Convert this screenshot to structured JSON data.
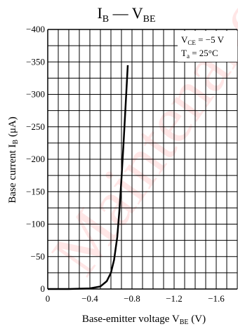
{
  "chart_data": {
    "type": "line",
    "title": {
      "main": "I",
      "main_sub": "B",
      "sep": " — ",
      "second": "V",
      "second_sub": "BE"
    },
    "ylabel": {
      "text": "Base current  I",
      "sub": "B",
      "unit": "  (μA)"
    },
    "xlabel": {
      "text": "Base-emitter voltage  V",
      "sub": "BE",
      "unit": "  (V)"
    },
    "x_ticks": [
      "0",
      "−0.4",
      "−0.8",
      "−1.2",
      "−1.6"
    ],
    "x_tick_values": [
      0,
      -0.4,
      -0.8,
      -1.2,
      -1.6
    ],
    "y_ticks": [
      "0",
      "−50",
      "−100",
      "−150",
      "−200",
      "−250",
      "−300",
      "−350",
      "−400"
    ],
    "y_tick_values": [
      0,
      -50,
      -100,
      -150,
      -200,
      -250,
      -300,
      -350,
      -400
    ],
    "xlim": [
      0,
      -1.8
    ],
    "ylim": [
      0,
      -400
    ],
    "grid": true,
    "conditions": [
      {
        "label": "V",
        "sub": "CE",
        "value": " = −5 V"
      },
      {
        "label": "T",
        "sub": "a",
        "value": " = 25°C"
      }
    ],
    "series": [
      {
        "x": [
          0,
          -0.2,
          -0.4,
          -0.5,
          -0.56,
          -0.6,
          -0.63,
          -0.66,
          -0.68,
          -0.7,
          -0.72,
          -0.74,
          -0.76
        ],
        "y": [
          0,
          0,
          -1,
          -4,
          -12,
          -25,
          -45,
          -80,
          -120,
          -170,
          -225,
          -285,
          -345
        ],
        "color": "#000000"
      }
    ],
    "watermark": "Maintenance"
  }
}
